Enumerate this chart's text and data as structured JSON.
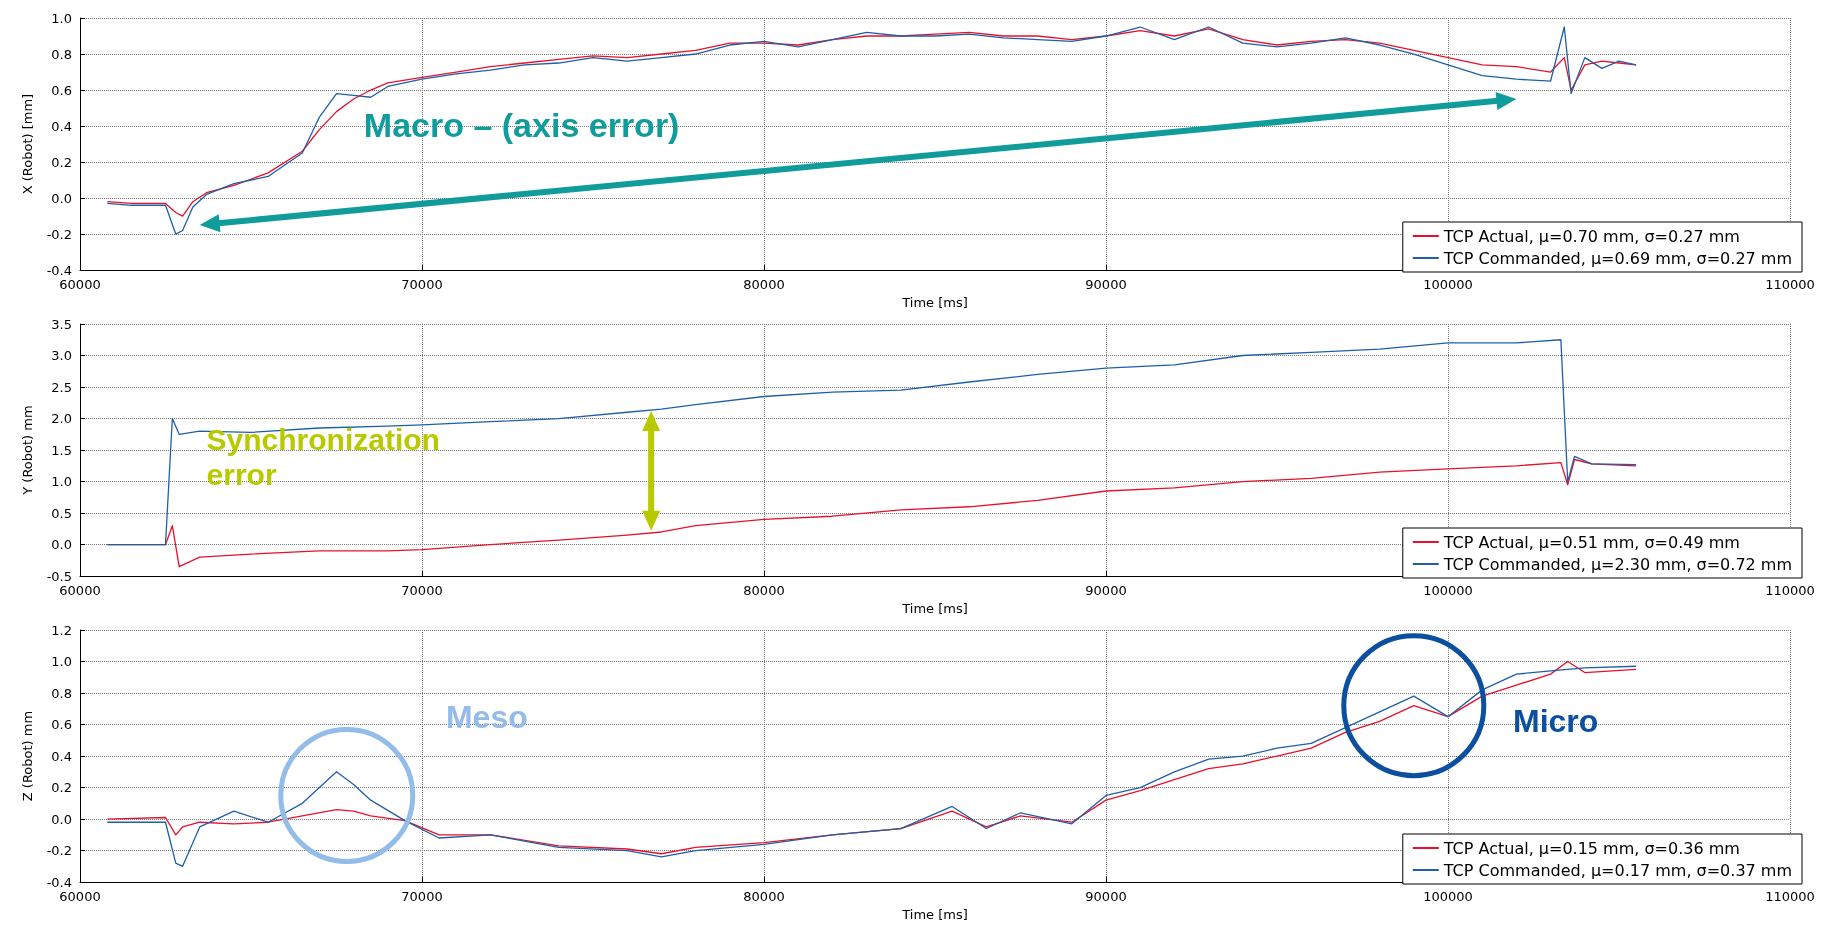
{
  "chart_data": [
    {
      "type": "line",
      "xlabel": "Time [ms]",
      "ylabel": "X (Robot) [mm]",
      "xlim": [
        60000,
        110000
      ],
      "xticks": [
        60000,
        70000,
        80000,
        90000,
        100000,
        110000
      ],
      "ylim": [
        -0.4,
        1.0
      ],
      "yticks": [
        -0.4,
        -0.2,
        {
          "value": 0,
          "label": "0.0"
        },
        0.2,
        0.4,
        0.6,
        0.8,
        {
          "value": 1,
          "label": "1.0"
        }
      ],
      "grid": true,
      "legend": "bottom right",
      "marker": "none",
      "line_style": "solid",
      "annotations": [
        "Macro – (axis error)"
      ],
      "x": [
        60800,
        61500,
        62500,
        62800,
        63000,
        63300,
        63700,
        64500,
        65500,
        66500,
        67000,
        67500,
        68000,
        68500,
        69000,
        70000,
        71000,
        72000,
        73000,
        74000,
        75000,
        76000,
        77000,
        78000,
        79000,
        80000,
        81000,
        82000,
        83000,
        84000,
        85000,
        86000,
        87000,
        88000,
        89000,
        90000,
        91000,
        92000,
        93000,
        94000,
        95000,
        96000,
        97000,
        98000,
        99000,
        100000,
        101000,
        102000,
        103000,
        103400,
        103600,
        104000,
        104500,
        105000,
        105500
      ],
      "series": [
        {
          "name": "TCP Actual, μ=0.70 mm, σ=0.27 mm",
          "color": "#e8112d",
          "values": [
            -0.02,
            -0.03,
            -0.03,
            -0.08,
            -0.1,
            -0.02,
            0.03,
            0.07,
            0.14,
            0.26,
            0.38,
            0.48,
            0.55,
            0.6,
            0.64,
            0.67,
            0.7,
            0.73,
            0.75,
            0.77,
            0.79,
            0.78,
            0.8,
            0.82,
            0.86,
            0.86,
            0.85,
            0.88,
            0.9,
            0.9,
            0.91,
            0.92,
            0.9,
            0.9,
            0.88,
            0.9,
            0.93,
            0.9,
            0.94,
            0.88,
            0.85,
            0.87,
            0.88,
            0.86,
            0.82,
            0.78,
            0.74,
            0.73,
            0.7,
            0.78,
            0.6,
            0.74,
            0.76,
            0.75,
            0.74
          ]
        },
        {
          "name": "TCP Commanded, μ=0.69 mm, σ=0.27 mm",
          "color": "#1f5fa8",
          "values": [
            -0.03,
            -0.04,
            -0.04,
            -0.2,
            -0.18,
            -0.05,
            0.02,
            0.08,
            0.12,
            0.25,
            0.45,
            0.58,
            0.57,
            0.56,
            0.62,
            0.66,
            0.69,
            0.71,
            0.74,
            0.75,
            0.78,
            0.76,
            0.78,
            0.8,
            0.85,
            0.87,
            0.84,
            0.88,
            0.92,
            0.9,
            0.9,
            0.91,
            0.89,
            0.88,
            0.87,
            0.9,
            0.95,
            0.88,
            0.95,
            0.86,
            0.84,
            0.86,
            0.89,
            0.85,
            0.8,
            0.74,
            0.68,
            0.66,
            0.65,
            0.95,
            0.58,
            0.78,
            0.72,
            0.76,
            0.74
          ]
        }
      ]
    },
    {
      "type": "line",
      "xlabel": "Time [ms]",
      "ylabel": "Y (Robot) mm",
      "xlim": [
        60000,
        110000
      ],
      "xticks": [
        60000,
        70000,
        80000,
        90000,
        100000,
        110000
      ],
      "ylim": [
        -0.5,
        3.5
      ],
      "yticks": [
        -0.5,
        {
          "value": 0,
          "label": "0.0"
        },
        0.5,
        {
          "value": 1,
          "label": "1.0"
        },
        1.5,
        {
          "value": 2,
          "label": "2.0"
        },
        2.5,
        {
          "value": 3,
          "label": "3.0"
        },
        3.5
      ],
      "grid": true,
      "legend": "bottom right",
      "marker": "none",
      "line_style": "solid",
      "annotations": [
        "Synchronization error"
      ],
      "x": [
        60800,
        62500,
        62700,
        62900,
        63500,
        65000,
        67000,
        69000,
        70000,
        72000,
        74000,
        76000,
        77000,
        78000,
        80000,
        82000,
        84000,
        86000,
        88000,
        90000,
        92000,
        94000,
        96000,
        98000,
        100000,
        102000,
        103300,
        103500,
        103700,
        104200,
        105500
      ],
      "series": [
        {
          "name": "TCP Actual, μ=0.51 mm, σ=0.49 mm",
          "color": "#e8112d",
          "values": [
            0,
            0,
            0.3,
            -0.35,
            -0.2,
            -0.15,
            -0.1,
            -0.1,
            -0.08,
            0,
            0.07,
            0.15,
            0.2,
            0.3,
            0.4,
            0.45,
            0.55,
            0.6,
            0.7,
            0.85,
            0.9,
            1.0,
            1.05,
            1.15,
            1.2,
            1.25,
            1.3,
            0.95,
            1.35,
            1.28,
            1.25
          ]
        },
        {
          "name": "TCP Commanded, μ=2.30 mm, σ=0.72 mm",
          "color": "#1f5fa8",
          "values": [
            0,
            0,
            2.0,
            1.75,
            1.8,
            1.78,
            1.85,
            1.88,
            1.9,
            1.95,
            2.0,
            2.1,
            2.15,
            2.22,
            2.35,
            2.42,
            2.45,
            2.58,
            2.7,
            2.8,
            2.85,
            3.0,
            3.05,
            3.1,
            3.2,
            3.2,
            3.25,
            1.0,
            1.4,
            1.28,
            1.27
          ]
        }
      ]
    },
    {
      "type": "line",
      "xlabel": "Time [ms]",
      "ylabel": "Z (Robot) mm",
      "xlim": [
        60000,
        110000
      ],
      "xticks": [
        60000,
        70000,
        80000,
        90000,
        100000,
        110000
      ],
      "ylim": [
        -0.4,
        1.2
      ],
      "yticks": [
        -0.4,
        -0.2,
        {
          "value": 0,
          "label": "0.0"
        },
        0.2,
        0.4,
        0.6,
        0.8,
        {
          "value": 1,
          "label": "1.0"
        },
        1.2
      ],
      "grid": true,
      "legend": "bottom right",
      "marker": "none",
      "line_style": "solid",
      "annotations": [
        "Meso",
        "Micro"
      ],
      "x": [
        60800,
        62500,
        62800,
        63000,
        63500,
        64500,
        65500,
        66500,
        67500,
        68000,
        68500,
        69500,
        70500,
        72000,
        74000,
        76000,
        77000,
        78000,
        80000,
        82000,
        84000,
        85500,
        86500,
        87500,
        89000,
        90000,
        91000,
        92000,
        93000,
        94000,
        95000,
        96000,
        97000,
        98000,
        99000,
        100000,
        101000,
        102000,
        103000,
        103500,
        104000,
        105500
      ],
      "series": [
        {
          "name": "TCP Actual, μ=0.15 mm, σ=0.36 mm",
          "color": "#e8112d",
          "values": [
            0.0,
            0.01,
            -0.1,
            -0.05,
            -0.02,
            -0.03,
            -0.02,
            0.02,
            0.06,
            0.05,
            0.02,
            -0.01,
            -0.1,
            -0.1,
            -0.17,
            -0.19,
            -0.22,
            -0.18,
            -0.15,
            -0.1,
            -0.06,
            0.05,
            -0.05,
            0.02,
            -0.02,
            0.12,
            0.18,
            0.25,
            0.32,
            0.35,
            0.4,
            0.45,
            0.55,
            0.62,
            0.72,
            0.65,
            0.78,
            0.85,
            0.92,
            1.0,
            0.93,
            0.95
          ]
        },
        {
          "name": "TCP Commanded, μ=0.17 mm, σ=0.37 mm",
          "color": "#1f5fa8",
          "values": [
            -0.02,
            -0.02,
            -0.28,
            -0.3,
            -0.05,
            0.05,
            -0.02,
            0.1,
            0.3,
            0.22,
            0.12,
            -0.01,
            -0.12,
            -0.1,
            -0.18,
            -0.2,
            -0.24,
            -0.2,
            -0.16,
            -0.1,
            -0.06,
            0.08,
            -0.06,
            0.04,
            -0.03,
            0.15,
            0.2,
            0.3,
            0.38,
            0.4,
            0.45,
            0.48,
            0.58,
            0.68,
            0.78,
            0.65,
            0.82,
            0.92,
            0.94,
            0.95,
            0.96,
            0.97
          ]
        }
      ]
    }
  ]
}
